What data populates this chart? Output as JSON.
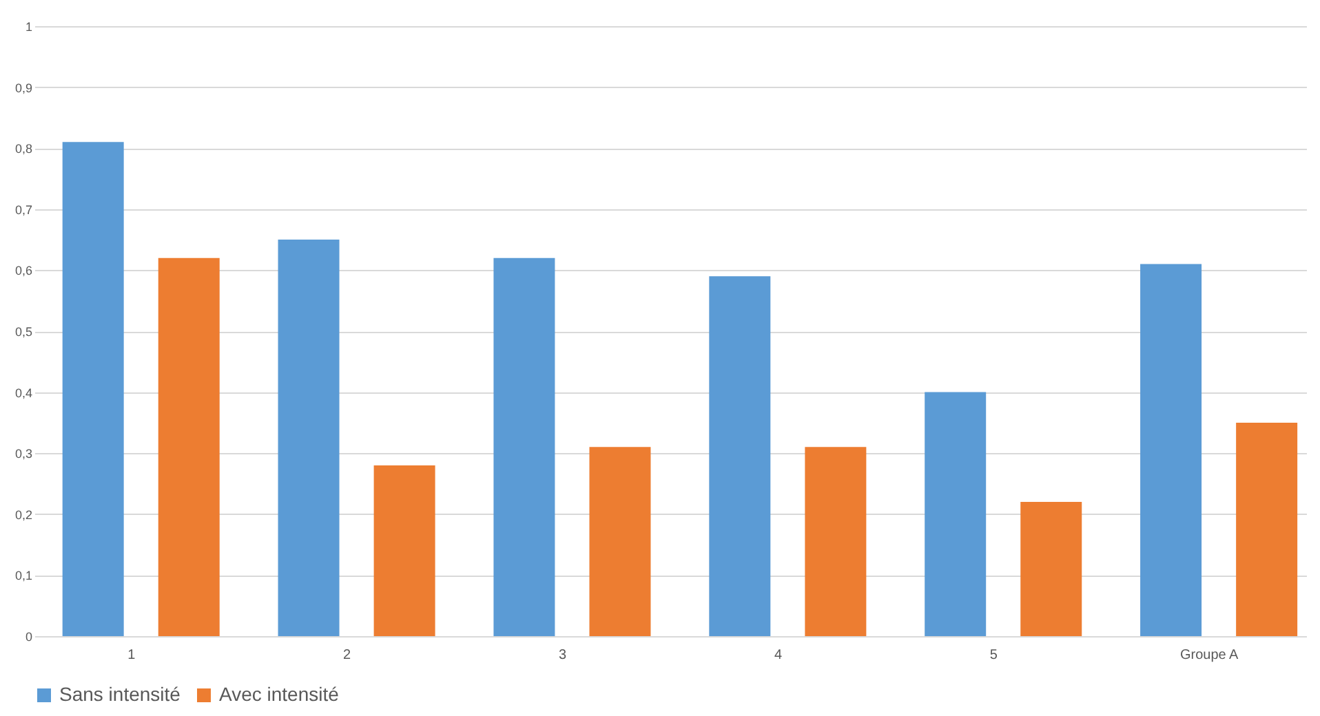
{
  "chart_data": {
    "type": "bar",
    "categories": [
      "1",
      "2",
      "3",
      "4",
      "5",
      "Groupe A"
    ],
    "series": [
      {
        "name": "Sans intensité",
        "color": "#5b9bd5",
        "values": [
          0.81,
          0.65,
          0.62,
          0.59,
          0.4,
          0.61
        ]
      },
      {
        "name": "Avec intensité",
        "color": "#ed7d31",
        "values": [
          0.62,
          0.28,
          0.31,
          0.31,
          0.22,
          0.35
        ]
      }
    ],
    "ylim": [
      0,
      1
    ],
    "yticks": [
      0,
      {
        "value": 0.1,
        "label": "0,1"
      },
      {
        "value": 0.2,
        "label": "0,2"
      },
      {
        "value": 0.3,
        "label": "0,3"
      },
      {
        "value": 0.4,
        "label": "0,4"
      },
      {
        "value": 0.5,
        "label": "0,5"
      },
      {
        "value": 0.6,
        "label": "0,6"
      },
      {
        "value": 0.7,
        "label": "0,7"
      },
      {
        "value": 0.8,
        "label": "0,8"
      },
      {
        "value": 0.9,
        "label": "0,9"
      },
      1
    ],
    "grid": "y",
    "legend": "bottom"
  }
}
